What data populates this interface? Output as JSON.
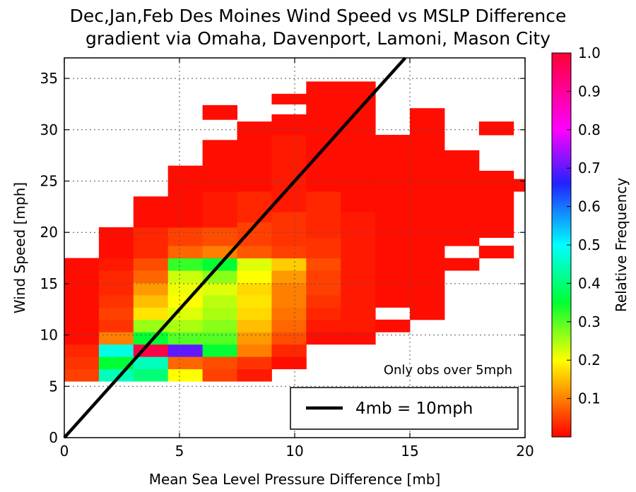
{
  "chart_data": {
    "type": "heatmap",
    "title_line1": "Dec,Jan,Feb Des Moines Wind Speed vs MSLP Difference",
    "title_line2": "gradient via Omaha, Davenport, Lamoni, Mason City",
    "xlabel": "Mean Sea Level Pressure Difference [mb]",
    "ylabel": "Wind Speed [mph]",
    "xlim": [
      0,
      20
    ],
    "ylim": [
      0,
      37
    ],
    "x_ticks": [
      0,
      5,
      10,
      15,
      20
    ],
    "y_ticks": [
      0,
      5,
      10,
      15,
      20,
      25,
      30,
      35
    ],
    "grid": true,
    "bin_width_x": 1.5,
    "bin_width_y": 1.2,
    "cells_note": "each cell: [x_start_mb, x_end_mb, y_start_mph, y_end_mph, relative_frequency]",
    "cells": [
      [
        0,
        1.5,
        5.5,
        6.7,
        0.05
      ],
      [
        0,
        1.5,
        6.7,
        7.9,
        0.04
      ],
      [
        0,
        1.5,
        7.9,
        9.1,
        0.03
      ],
      [
        0,
        1.5,
        9.1,
        17.5,
        0.01
      ],
      [
        1.5,
        3,
        5.5,
        6.7,
        0.45
      ],
      [
        1.5,
        3,
        6.7,
        7.9,
        0.35
      ],
      [
        1.5,
        3,
        7.9,
        9.1,
        0.48
      ],
      [
        1.5,
        3,
        9.1,
        10.3,
        0.1
      ],
      [
        1.5,
        3,
        10.3,
        11.5,
        0.04
      ],
      [
        1.5,
        3,
        11.5,
        12.7,
        0.05
      ],
      [
        1.5,
        3,
        12.7,
        13.9,
        0.04
      ],
      [
        1.5,
        3,
        13.9,
        15.1,
        0.03
      ],
      [
        1.5,
        3,
        15.1,
        16.3,
        0.03
      ],
      [
        1.5,
        3,
        16.3,
        17.5,
        0.02
      ],
      [
        1.5,
        3,
        17.5,
        20.5,
        0.01
      ],
      [
        3,
        4.5,
        5.5,
        6.7,
        0.4
      ],
      [
        3,
        4.5,
        6.7,
        7.9,
        0.45
      ],
      [
        3,
        4.5,
        7.9,
        9.1,
        0.98
      ],
      [
        3,
        4.5,
        9.1,
        10.3,
        0.35
      ],
      [
        3,
        4.5,
        10.3,
        11.5,
        0.26
      ],
      [
        3,
        4.5,
        11.5,
        12.7,
        0.18
      ],
      [
        3,
        4.5,
        12.7,
        13.9,
        0.15
      ],
      [
        3,
        4.5,
        13.9,
        15.1,
        0.12
      ],
      [
        3,
        4.5,
        15.1,
        16.3,
        0.08
      ],
      [
        3,
        4.5,
        16.3,
        17.5,
        0.06
      ],
      [
        3,
        4.5,
        17.5,
        20.5,
        0.03
      ],
      [
        3,
        4.5,
        20.5,
        23.5,
        0.01
      ],
      [
        4.5,
        6,
        5.5,
        6.7,
        0.2
      ],
      [
        4.5,
        6,
        6.7,
        7.9,
        0.08
      ],
      [
        4.5,
        6,
        7.9,
        9.1,
        0.7
      ],
      [
        4.5,
        6,
        9.1,
        10.3,
        0.3
      ],
      [
        4.5,
        6,
        10.3,
        11.5,
        0.25
      ],
      [
        4.5,
        6,
        11.5,
        12.7,
        0.22
      ],
      [
        4.5,
        6,
        12.7,
        13.9,
        0.2
      ],
      [
        4.5,
        6,
        13.9,
        15.1,
        0.21
      ],
      [
        4.5,
        6,
        15.1,
        16.3,
        0.23
      ],
      [
        4.5,
        6,
        16.3,
        17.5,
        0.32
      ],
      [
        4.5,
        6,
        17.5,
        18.7,
        0.08
      ],
      [
        4.5,
        6,
        18.7,
        20.5,
        0.05
      ],
      [
        4.5,
        6,
        20.5,
        26.5,
        0.01
      ],
      [
        6,
        7.5,
        5.5,
        6.7,
        0.05
      ],
      [
        6,
        7.5,
        6.7,
        7.9,
        0.06
      ],
      [
        6,
        7.5,
        7.9,
        9.1,
        0.35
      ],
      [
        6,
        7.5,
        9.1,
        10.3,
        0.3
      ],
      [
        6,
        7.5,
        10.3,
        11.5,
        0.27
      ],
      [
        6,
        7.5,
        11.5,
        12.7,
        0.25
      ],
      [
        6,
        7.5,
        12.7,
        13.9,
        0.24
      ],
      [
        6,
        7.5,
        13.9,
        15.1,
        0.22
      ],
      [
        6,
        7.5,
        15.1,
        16.3,
        0.27
      ],
      [
        6,
        7.5,
        16.3,
        17.5,
        0.35
      ],
      [
        6,
        7.5,
        17.5,
        18.7,
        0.1
      ],
      [
        6,
        7.5,
        18.7,
        20.5,
        0.06
      ],
      [
        6,
        7.5,
        20.5,
        24,
        0.02
      ],
      [
        6,
        7.5,
        24,
        29,
        0.01
      ],
      [
        6,
        7.5,
        31,
        32.4,
        0.01
      ],
      [
        7.5,
        9,
        5.5,
        6.7,
        0.02
      ],
      [
        7.5,
        9,
        6.7,
        7.9,
        0.04
      ],
      [
        7.5,
        9,
        7.9,
        9.1,
        0.1
      ],
      [
        7.5,
        9,
        9.1,
        10.3,
        0.12
      ],
      [
        7.5,
        9,
        10.3,
        11.5,
        0.15
      ],
      [
        7.5,
        9,
        11.5,
        12.7,
        0.17
      ],
      [
        7.5,
        9,
        12.7,
        13.9,
        0.18
      ],
      [
        7.5,
        9,
        13.9,
        15.1,
        0.17
      ],
      [
        7.5,
        9,
        15.1,
        16.3,
        0.2
      ],
      [
        7.5,
        9,
        16.3,
        17.5,
        0.22
      ],
      [
        7.5,
        9,
        17.5,
        18.7,
        0.07
      ],
      [
        7.5,
        9,
        18.7,
        21,
        0.05
      ],
      [
        7.5,
        9,
        21,
        24,
        0.03
      ],
      [
        7.5,
        9,
        24,
        30.8,
        0.01
      ],
      [
        9,
        10.5,
        6.7,
        7.9,
        0.01
      ],
      [
        9,
        10.5,
        7.9,
        9.1,
        0.03
      ],
      [
        9,
        10.5,
        9.1,
        10.3,
        0.06
      ],
      [
        9,
        10.5,
        10.3,
        11.5,
        0.08
      ],
      [
        9,
        10.5,
        11.5,
        12.7,
        0.09
      ],
      [
        9,
        10.5,
        12.7,
        13.9,
        0.1
      ],
      [
        9,
        10.5,
        13.9,
        15.1,
        0.1
      ],
      [
        9,
        10.5,
        15.1,
        16.3,
        0.12
      ],
      [
        9,
        10.5,
        16.3,
        17.5,
        0.16
      ],
      [
        9,
        10.5,
        17.5,
        18.7,
        0.05
      ],
      [
        9,
        10.5,
        18.7,
        22,
        0.04
      ],
      [
        9,
        10.5,
        22,
        29.5,
        0.02
      ],
      [
        9,
        10.5,
        29.5,
        31.5,
        0.01
      ],
      [
        9,
        10.5,
        32.5,
        33.5,
        0.01
      ],
      [
        10.5,
        12,
        9.1,
        10.3,
        0.01
      ],
      [
        10.5,
        12,
        10.3,
        11.5,
        0.02
      ],
      [
        10.5,
        12,
        11.5,
        12.7,
        0.03
      ],
      [
        10.5,
        12,
        12.7,
        13.9,
        0.04
      ],
      [
        10.5,
        12,
        13.9,
        15.1,
        0.05
      ],
      [
        10.5,
        12,
        15.1,
        16.3,
        0.05
      ],
      [
        10.5,
        12,
        16.3,
        17.5,
        0.06
      ],
      [
        10.5,
        12,
        17.5,
        19.5,
        0.04
      ],
      [
        10.5,
        12,
        19.5,
        24,
        0.03
      ],
      [
        10.5,
        12,
        24,
        34.7,
        0.01
      ],
      [
        12,
        13.5,
        9.1,
        10.3,
        0.01
      ],
      [
        12,
        13.5,
        10.3,
        17.5,
        0.02
      ],
      [
        12,
        13.5,
        17.5,
        22,
        0.02
      ],
      [
        12,
        13.5,
        22,
        34.7,
        0.01
      ],
      [
        13.5,
        15,
        10.3,
        11.5,
        0.01
      ],
      [
        13.5,
        15,
        12.7,
        17.5,
        0.01
      ],
      [
        13.5,
        15,
        17.5,
        23,
        0.01
      ],
      [
        13.5,
        15,
        23,
        29.5,
        0.01
      ],
      [
        15,
        16.5,
        11.5,
        28,
        0.01
      ],
      [
        15,
        16.5,
        28,
        32.1,
        0.01
      ],
      [
        16.5,
        18,
        16.3,
        17.5,
        0.01
      ],
      [
        16.5,
        18,
        18.7,
        28,
        0.01
      ],
      [
        18,
        19.5,
        17.5,
        18.7,
        0.01
      ],
      [
        18,
        19.5,
        19.5,
        26,
        0.01
      ],
      [
        18,
        19.5,
        29.5,
        30.8,
        0.01
      ],
      [
        19.5,
        20,
        24,
        25.2,
        0.01
      ]
    ],
    "reference_line": {
      "label": "4mb = 10mph",
      "x": [
        0,
        14.8
      ],
      "y": [
        0,
        37
      ]
    },
    "annotation": "Only obs over 5mph",
    "legend_position": "lower-right",
    "colorbar": {
      "label": "Relative Frequency",
      "range": [
        0,
        1
      ],
      "ticks": [
        "0.1",
        "0.2",
        "0.3",
        "0.4",
        "0.5",
        "0.6",
        "0.7",
        "0.8",
        "0.9",
        "1.0"
      ],
      "tick_values": [
        0.1,
        0.2,
        0.3,
        0.4,
        0.5,
        0.6,
        0.7,
        0.8,
        0.9,
        1.0
      ],
      "colormap": "gist_rainbow_r (red → yellow → green → cyan → blue → magenta → red)"
    }
  }
}
